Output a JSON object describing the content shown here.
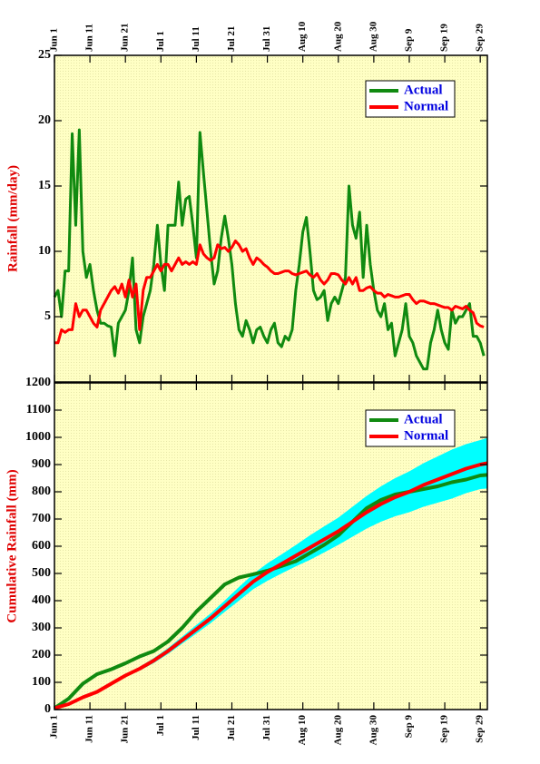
{
  "chart_data": [
    {
      "type": "line",
      "ylabel": "Rainfall (mm/day)",
      "legend": "upper right",
      "x": [
        0,
        1,
        2,
        3,
        4,
        5,
        6,
        7,
        8,
        9,
        10,
        11,
        12,
        13,
        14,
        15,
        16,
        17,
        18,
        19,
        20,
        21,
        22,
        23,
        24,
        25,
        26,
        27,
        28,
        29,
        30,
        31,
        32,
        33,
        34,
        35,
        36,
        37,
        38,
        39,
        40,
        41,
        42,
        43,
        44,
        45,
        46,
        47,
        48,
        49,
        50,
        51,
        52,
        53,
        54,
        55,
        56,
        57,
        58,
        59,
        60,
        61,
        62,
        63,
        64,
        65,
        66,
        67,
        68,
        69,
        70,
        71,
        72,
        73,
        74,
        75,
        76,
        77,
        78,
        79,
        80,
        81,
        82,
        83,
        84,
        85,
        86,
        87,
        88,
        89,
        90,
        91,
        92,
        93,
        94,
        95,
        96,
        97,
        98,
        99,
        100,
        101,
        102,
        103,
        104,
        105,
        106,
        107,
        108,
        109,
        110,
        111,
        112,
        113,
        114,
        115,
        116,
        117,
        118,
        119,
        120,
        121
      ],
      "series": [
        {
          "name": "Actual",
          "color": "#108a10",
          "values": [
            6.5,
            7,
            5,
            8.5,
            8.5,
            19,
            12,
            19.3,
            10,
            8,
            9,
            7,
            5.5,
            4.5,
            4.5,
            4.3,
            4.2,
            2,
            4.5,
            5,
            5.5,
            7,
            9.5,
            4,
            3,
            5,
            6,
            7,
            9,
            12,
            9,
            7,
            12,
            12,
            12,
            15.3,
            12,
            14,
            14.2,
            12,
            9.5,
            19.1,
            16,
            13,
            10,
            7.5,
            8.5,
            11,
            12.7,
            11,
            9,
            6,
            4,
            3.5,
            4.7,
            4,
            3,
            4,
            4.2,
            3.5,
            3,
            4,
            4.5,
            3,
            2.7,
            3.5,
            3.2,
            4,
            7,
            9,
            11.5,
            12.6,
            10,
            7,
            6.3,
            6.5,
            7,
            4.7,
            6,
            6.5,
            6,
            7,
            8,
            15,
            12,
            11,
            13,
            8,
            12,
            9,
            7,
            5.5,
            5,
            6,
            4,
            4.5,
            2,
            3,
            4,
            6,
            3.5,
            3,
            2,
            1.5,
            1,
            1,
            3,
            4,
            5.5,
            4,
            3,
            2.5,
            5.5,
            4.5,
            5,
            5,
            5.5,
            6,
            3.5,
            3.5,
            3,
            2
          ]
        },
        {
          "name": "Normal",
          "color": "#ff0000",
          "values": [
            3,
            3,
            4,
            3.8,
            4,
            4,
            6,
            5,
            5.5,
            5.5,
            5,
            4.5,
            4.2,
            5.5,
            6,
            6.5,
            7,
            7.3,
            6.8,
            7.5,
            6.5,
            7.8,
            6.5,
            7.5,
            4,
            7,
            8,
            8,
            8.5,
            9,
            8.5,
            9,
            9,
            8.5,
            9,
            9.5,
            9,
            9.2,
            9,
            9.2,
            9,
            10.5,
            9.8,
            9.5,
            9.3,
            9.5,
            10.5,
            10.2,
            10.3,
            10,
            10.3,
            10.8,
            10.5,
            10,
            10.2,
            9.5,
            9,
            9.5,
            9.3,
            9,
            8.8,
            8.5,
            8.3,
            8.3,
            8.4,
            8.5,
            8.5,
            8.3,
            8.2,
            8.3,
            8.4,
            8.5,
            8.2,
            8,
            8.3,
            7.8,
            7.5,
            7.8,
            8.3,
            8.3,
            8.2,
            7.8,
            7.5,
            8,
            7.5,
            8,
            7,
            7,
            7.2,
            7.3,
            7,
            6.8,
            6.8,
            6.5,
            6.7,
            6.6,
            6.5,
            6.5,
            6.6,
            6.7,
            6.7,
            6.3,
            6,
            6.2,
            6.2,
            6.1,
            6,
            6,
            5.9,
            5.8,
            5.7,
            5.7,
            5.5,
            5.8,
            5.7,
            5.6,
            5.8,
            5.5,
            5.3,
            4.5,
            4.3,
            4.2
          ]
        }
      ],
      "xlim": [
        0,
        122
      ],
      "xticks": [
        {
          "value": 0,
          "label": "Jun 1"
        },
        {
          "value": 10,
          "label": "Jun 11"
        },
        {
          "value": 20,
          "label": "Jun 21"
        },
        {
          "value": 30,
          "label": "Jul 1"
        },
        {
          "value": 40,
          "label": "Jul 11"
        },
        {
          "value": 50,
          "label": "Jul 21"
        },
        {
          "value": 60,
          "label": "Jul 31"
        },
        {
          "value": 70,
          "label": "Aug 10"
        },
        {
          "value": 80,
          "label": "Aug 20"
        },
        {
          "value": 90,
          "label": "Aug 30"
        },
        {
          "value": 100,
          "label": "Sep 9"
        },
        {
          "value": 110,
          "label": "Sep 19"
        },
        {
          "value": 120,
          "label": "Sep 29"
        }
      ],
      "ylim": [
        0,
        25
      ],
      "yticks": [
        5,
        10,
        15,
        20,
        25
      ]
    },
    {
      "type": "line",
      "ylabel": "Cumulative Rainfall (mm)",
      "legend": "upper right",
      "x": [
        0,
        4,
        8,
        12,
        16,
        20,
        24,
        28,
        32,
        36,
        40,
        44,
        48,
        52,
        56,
        60,
        64,
        68,
        72,
        76,
        80,
        84,
        88,
        92,
        96,
        100,
        104,
        108,
        112,
        116,
        120,
        122
      ],
      "band": {
        "color": "#00ffff",
        "lower": [
          5,
          19,
          43,
          62,
          91,
          120,
          143,
          171,
          204,
          242,
          279,
          317,
          359,
          400,
          442,
          473,
          500,
          526,
          550,
          577,
          605,
          635,
          665,
          690,
          710,
          725,
          745,
          760,
          775,
          795,
          810,
          812
        ],
        "upper": [
          5,
          21,
          47,
          68,
          99,
          130,
          157,
          189,
          226,
          268,
          311,
          353,
          401,
          450,
          498,
          537,
          570,
          604,
          640,
          673,
          705,
          745,
          785,
          820,
          850,
          875,
          905,
          930,
          955,
          975,
          990,
          998
        ]
      },
      "series": [
        {
          "name": "Actual",
          "color": "#108a10",
          "values": [
            5,
            40,
            95,
            130,
            148,
            170,
            195,
            215,
            250,
            300,
            360,
            410,
            460,
            485,
            497,
            510,
            527,
            545,
            575,
            605,
            640,
            690,
            740,
            770,
            790,
            800,
            810,
            820,
            835,
            845,
            860,
            862
          ]
        },
        {
          "name": "Normal",
          "color": "#ff0000",
          "values": [
            5,
            20,
            45,
            65,
            95,
            125,
            150,
            180,
            215,
            255,
            295,
            335,
            380,
            425,
            470,
            505,
            535,
            565,
            595,
            625,
            655,
            690,
            725,
            755,
            780,
            800,
            825,
            845,
            865,
            885,
            900,
            905
          ]
        }
      ],
      "xlim": [
        0,
        122
      ],
      "xticks": [
        {
          "value": 0,
          "label": "Jun 1"
        },
        {
          "value": 10,
          "label": "Jun 11"
        },
        {
          "value": 20,
          "label": "Jun 21"
        },
        {
          "value": 30,
          "label": "Jul 1"
        },
        {
          "value": 40,
          "label": "Jul 11"
        },
        {
          "value": 50,
          "label": "Jul 21"
        },
        {
          "value": 60,
          "label": "Jul 31"
        },
        {
          "value": 70,
          "label": "Aug 10"
        },
        {
          "value": 80,
          "label": "Aug 20"
        },
        {
          "value": 90,
          "label": "Aug 30"
        },
        {
          "value": 100,
          "label": "Sep 9"
        },
        {
          "value": 110,
          "label": "Sep 19"
        },
        {
          "value": 120,
          "label": "Sep 29"
        }
      ],
      "ylim": [
        0,
        1200
      ],
      "yticks": [
        0,
        100,
        200,
        300,
        400,
        500,
        600,
        700,
        800,
        900,
        1000,
        1100,
        1200
      ]
    }
  ]
}
